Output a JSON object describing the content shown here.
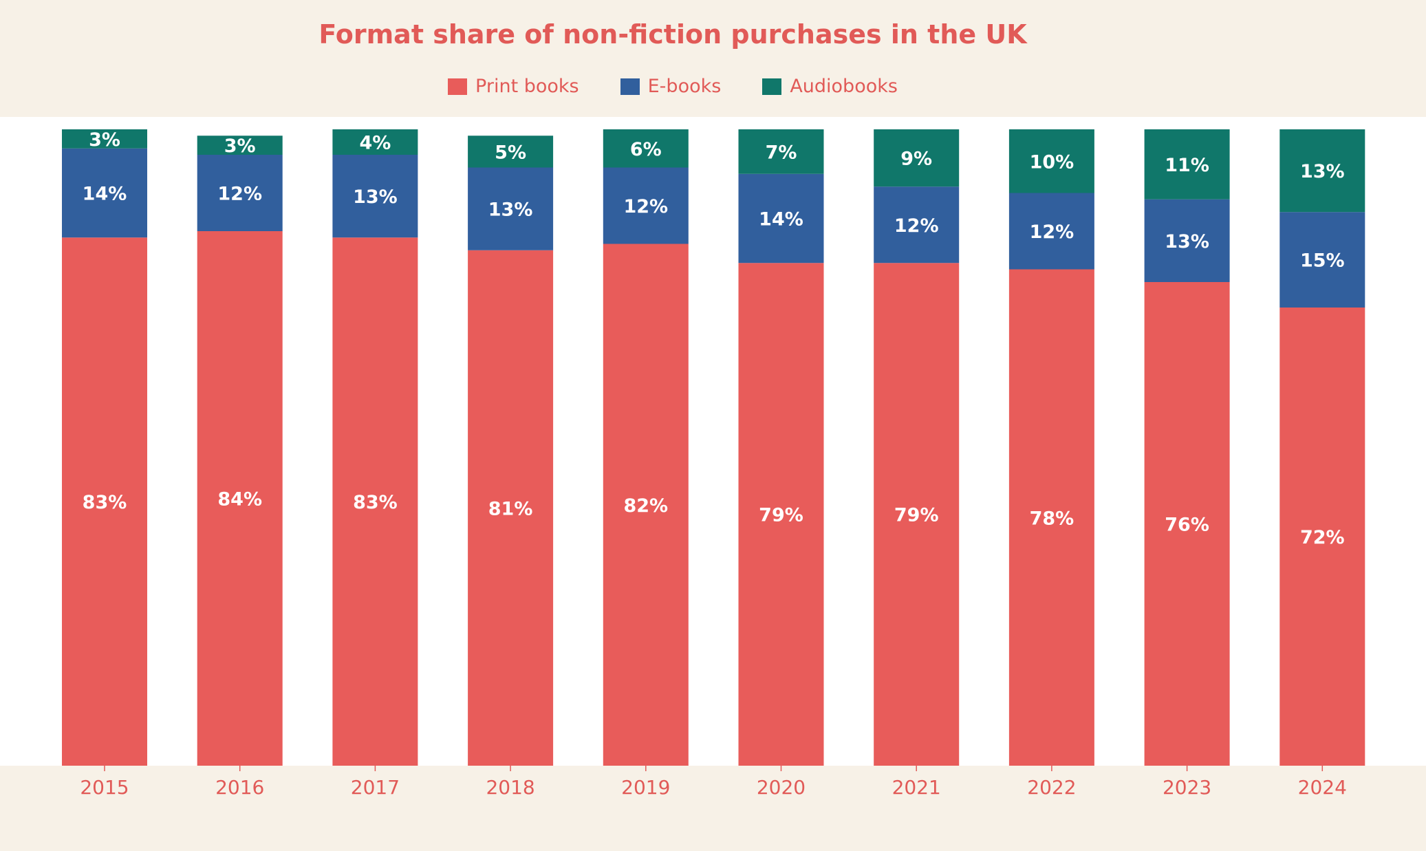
{
  "chart_data": {
    "type": "bar",
    "stacked": true,
    "title": "Format share of non-fiction purchases in the UK",
    "xlabel": "",
    "ylabel": "",
    "categories": [
      "2015",
      "2016",
      "2017",
      "2018",
      "2019",
      "2020",
      "2021",
      "2022",
      "2023",
      "2024"
    ],
    "series": [
      {
        "name": "Print books",
        "color": "#e85c5a",
        "values": [
          83,
          84,
          83,
          81,
          82,
          79,
          79,
          78,
          76,
          72
        ]
      },
      {
        "name": "E-books",
        "color": "#315f9d",
        "values": [
          14,
          12,
          13,
          13,
          12,
          14,
          12,
          12,
          13,
          15
        ]
      },
      {
        "name": "Audiobooks",
        "color": "#10776a",
        "values": [
          3,
          3,
          4,
          5,
          6,
          7,
          9,
          10,
          11,
          13
        ]
      }
    ],
    "value_suffix": "%",
    "ylim": [
      0,
      100
    ],
    "grid": false,
    "legend_position": "top-center"
  }
}
